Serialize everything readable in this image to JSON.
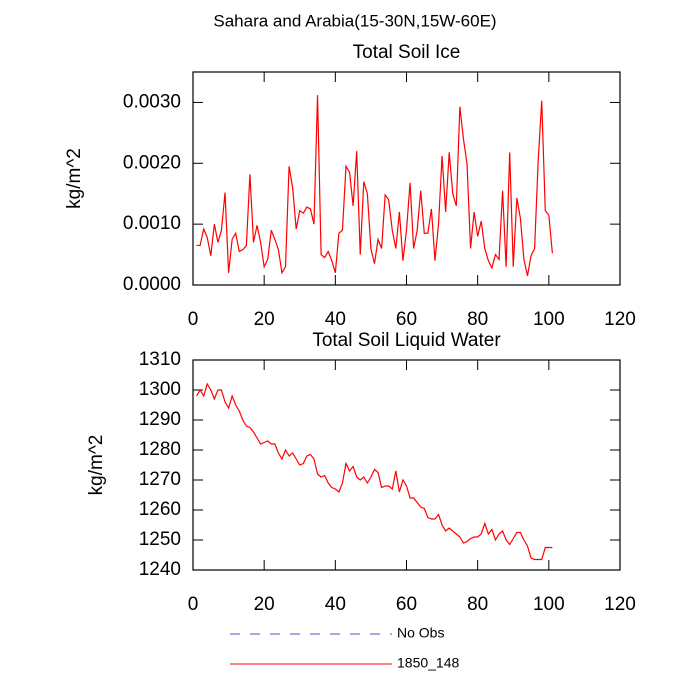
{
  "suptitle": "Sahara and Arabia(15-30N,15W-60E)",
  "chart_data": [
    {
      "type": "line",
      "title": "Total Soil Ice",
      "ylabel": "kg/m^2",
      "xlim": [
        0,
        120
      ],
      "xticks": [
        0,
        20,
        40,
        60,
        80,
        100,
        120
      ],
      "ylim": [
        0,
        0.0035
      ],
      "yticks": [
        {
          "value": 0,
          "label": "0.0000"
        },
        {
          "value": 0.001,
          "label": "0.0010"
        },
        {
          "value": 0.002,
          "label": "0.0020"
        },
        {
          "value": 0.003,
          "label": "0.0030"
        }
      ],
      "x": [
        1,
        2,
        3,
        4,
        5,
        6,
        7,
        8,
        9,
        10,
        11,
        12,
        13,
        14,
        15,
        16,
        17,
        18,
        19,
        20,
        21,
        22,
        23,
        24,
        25,
        26,
        27,
        28,
        29,
        30,
        31,
        32,
        33,
        34,
        35,
        36,
        37,
        38,
        39,
        40,
        41,
        42,
        43,
        44,
        45,
        46,
        47,
        48,
        49,
        50,
        51,
        52,
        53,
        54,
        55,
        56,
        57,
        58,
        59,
        60,
        61,
        62,
        63,
        64,
        65,
        66,
        67,
        68,
        69,
        70,
        71,
        72,
        73,
        74,
        75,
        76,
        77,
        78,
        79,
        80,
        81,
        82,
        83,
        84,
        85,
        86,
        87,
        88,
        89,
        90,
        91,
        92,
        93,
        94,
        95,
        96,
        97,
        98,
        99,
        100,
        101
      ],
      "series": [
        {
          "name": "1850_148",
          "color": "#ff0000",
          "values": [
            0.00065,
            0.00065,
            0.00092,
            0.00078,
            0.00048,
            0.001,
            0.0007,
            0.0009,
            0.00152,
            0.0002,
            0.00075,
            0.00085,
            0.00055,
            0.00058,
            0.00065,
            0.00182,
            0.0007,
            0.00098,
            0.0007,
            0.0003,
            0.00042,
            0.0009,
            0.00075,
            0.00058,
            0.0002,
            0.0003,
            0.00195,
            0.0016,
            0.00092,
            0.00122,
            0.00118,
            0.00128,
            0.00125,
            0.001,
            0.00312,
            0.0005,
            0.00045,
            0.00055,
            0.0004,
            0.0002,
            0.00085,
            0.0009,
            0.00195,
            0.00185,
            0.0013,
            0.0022,
            0.0005,
            0.0017,
            0.0015,
            0.0006,
            0.00035,
            0.00075,
            0.0006,
            0.00148,
            0.0014,
            0.0009,
            0.0006,
            0.0012,
            0.0004,
            0.0009,
            0.00168,
            0.0006,
            0.0009,
            0.00155,
            0.00085,
            0.00085,
            0.00125,
            0.0004,
            0.001,
            0.00212,
            0.0012,
            0.00218,
            0.0015,
            0.0013,
            0.00293,
            0.0024,
            0.002,
            0.0006,
            0.0012,
            0.0008,
            0.00105,
            0.0006,
            0.0004,
            0.00028,
            0.0005,
            0.00042,
            0.00155,
            0.0003,
            0.00218,
            0.0003,
            0.00143,
            0.0011,
            0.00042,
            0.00015,
            0.00048,
            0.0006,
            0.00203,
            0.00303,
            0.00122,
            0.00115,
            0.00052
          ]
        }
      ]
    },
    {
      "type": "line",
      "title": "Total Soil Liquid Water",
      "ylabel": "kg/m^2",
      "xlim": [
        0,
        120
      ],
      "xticks": [
        0,
        20,
        40,
        60,
        80,
        100,
        120
      ],
      "ylim": [
        1240,
        1310
      ],
      "yticks": [
        1240,
        1250,
        1260,
        1270,
        1280,
        1290,
        1300,
        1310
      ],
      "x": [
        1,
        2,
        3,
        4,
        5,
        6,
        7,
        8,
        9,
        10,
        11,
        12,
        13,
        14,
        15,
        16,
        17,
        18,
        19,
        20,
        21,
        22,
        23,
        24,
        25,
        26,
        27,
        28,
        29,
        30,
        31,
        32,
        33,
        34,
        35,
        36,
        37,
        38,
        39,
        40,
        41,
        42,
        43,
        44,
        45,
        46,
        47,
        48,
        49,
        50,
        51,
        52,
        53,
        54,
        55,
        56,
        57,
        58,
        59,
        60,
        61,
        62,
        63,
        64,
        65,
        66,
        67,
        68,
        69,
        70,
        71,
        72,
        73,
        74,
        75,
        76,
        77,
        78,
        79,
        80,
        81,
        82,
        83,
        84,
        85,
        86,
        87,
        88,
        89,
        90,
        91,
        92,
        93,
        94,
        95,
        96,
        97,
        98,
        99,
        100,
        101
      ],
      "series": [
        {
          "name": "1850_148",
          "color": "#ff0000",
          "values": [
            1298,
            1300,
            1298,
            1302,
            1300,
            1297,
            1300,
            1300,
            1296,
            1294,
            1298,
            1295,
            1293,
            1290,
            1288,
            1287.5,
            1286,
            1284,
            1282,
            1282.5,
            1283,
            1282,
            1282,
            1279,
            1277,
            1280,
            1278,
            1279,
            1277,
            1275,
            1275.5,
            1278,
            1278.5,
            1277,
            1272,
            1271,
            1271.5,
            1269,
            1267.5,
            1267,
            1266,
            1269,
            1275.5,
            1273,
            1274.5,
            1271,
            1270,
            1271,
            1269,
            1271,
            1273.5,
            1272.5,
            1267.5,
            1268,
            1268,
            1267,
            1273,
            1266,
            1270,
            1268,
            1264,
            1264,
            1262.5,
            1261,
            1260.5,
            1257.5,
            1257,
            1257,
            1258.5,
            1255,
            1253,
            1254,
            1253,
            1252,
            1251,
            1249,
            1249.5,
            1250.5,
            1251,
            1251,
            1252,
            1255.5,
            1252,
            1253.5,
            1250,
            1252,
            1253,
            1250,
            1248.5,
            1250.5,
            1252.5,
            1252.5,
            1250,
            1248,
            1244,
            1243.5,
            1243.5,
            1243.5,
            1247.5,
            1247.5,
            1247.5
          ]
        }
      ]
    }
  ],
  "legend": [
    {
      "name": "No Obs",
      "color": "#5a50c8",
      "dash": true
    },
    {
      "name": "1850_148",
      "color": "#ff0000",
      "dash": false
    }
  ]
}
